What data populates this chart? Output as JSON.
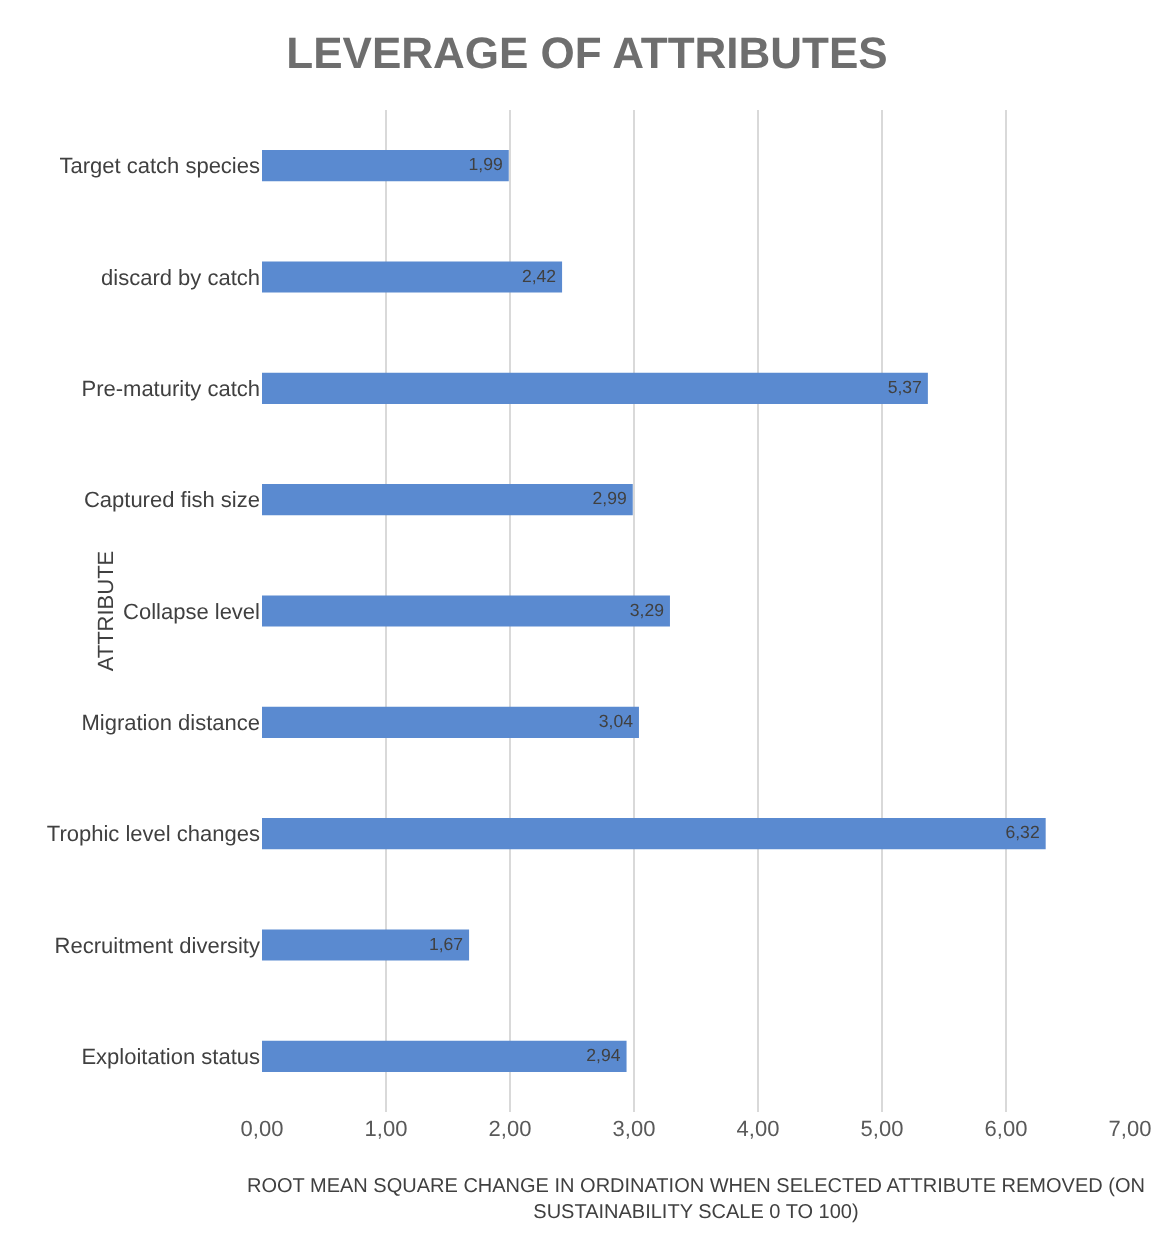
{
  "chart_data": {
    "type": "bar",
    "orientation": "horizontal",
    "title": "LEVERAGE OF ATTRIBUTES",
    "xlabel": "ROOT MEAN SQUARE CHANGE IN ORDINATION WHEN SELECTED ATTRIBUTE REMOVED (ON SUSTAINABILITY SCALE 0 TO 100)",
    "ylabel": "ATTRIBUTE",
    "categories": [
      "Target catch species",
      "discard by catch",
      "Pre-maturity catch",
      "Captured fish size",
      "Collapse level",
      "Migration distance",
      "Trophic level changes",
      "Recruitment diversity",
      "Exploitation status"
    ],
    "values": [
      1.99,
      2.42,
      5.37,
      2.99,
      3.29,
      3.04,
      6.32,
      1.67,
      2.94
    ],
    "value_labels": [
      "1,99",
      "2,42",
      "5,37",
      "2,99",
      "3,29",
      "3,04",
      "6,32",
      "1,67",
      "2,94"
    ],
    "color": "#5a8ad0",
    "xlim": [
      0,
      7
    ],
    "xticks": [
      {
        "value": 0,
        "label": "0,00"
      },
      {
        "value": 1,
        "label": "1,00"
      },
      {
        "value": 2,
        "label": "2,00"
      },
      {
        "value": 3,
        "label": "3,00"
      },
      {
        "value": 4,
        "label": "4,00"
      },
      {
        "value": 5,
        "label": "5,00"
      },
      {
        "value": 6,
        "label": "6,00"
      },
      {
        "value": 7,
        "label": "7,00"
      }
    ],
    "grid": "x"
  }
}
